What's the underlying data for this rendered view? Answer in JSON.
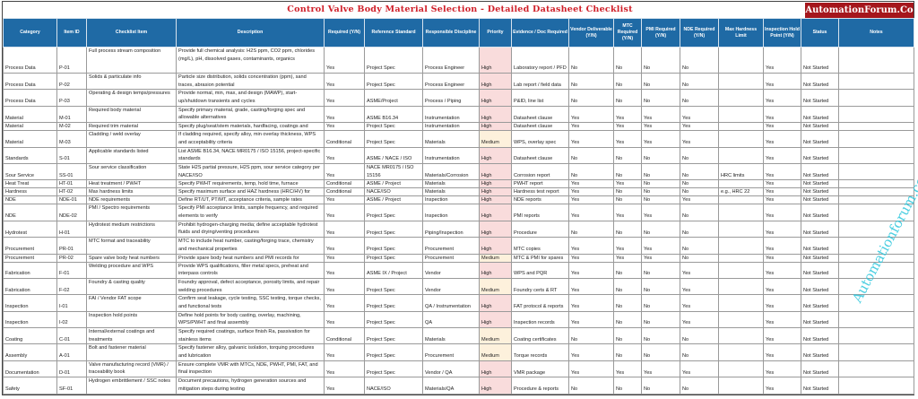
{
  "title": "Control Valve Body Material Selection - Detailed Datasheet Checklist",
  "logo_text": "AutomationForum.Co",
  "watermark_text": "Automationforum.co",
  "colors": {
    "header_bg": "#1f6aa5",
    "title": "#d0202a",
    "logo_bg": "#a5161c",
    "priority_high": "#f9dcdc",
    "priority_medium": "#fdf1dc"
  },
  "columns": [
    "Category",
    "Item ID",
    "Checklist Item",
    "Description",
    "Required (Y/N)",
    "Reference Standard",
    "Responsible Discipline",
    "Priority",
    "Evidence / Doc Required",
    "Vendor Deliverable (Y/N)",
    "MTC Required (Y/N)",
    "PMI Required (Y/N)",
    "NDE Required (Y/N)",
    "Max Hardness Limit",
    "Inspection Hold Point (Y/N)",
    "Status",
    "Notes"
  ],
  "rows": [
    [
      "Process Data",
      "P-01",
      "Full process stream composition",
      "Provide full chemical analysis: H2S ppm, CO2 ppm, chlorides (mg/L), pH, dissolved gases, contaminants, organics",
      "Yes",
      "Project Spec",
      "Process Engineer",
      "High",
      "Laboratory report / PFD",
      "No",
      "No",
      "No",
      "No",
      "",
      "Yes",
      "Not Started",
      ""
    ],
    [
      "Process Data",
      "P-02",
      "Solids & particulate info",
      "Particle size distribution, solids concentration (ppm), sand traces, abrasion potential",
      "Yes",
      "Project Spec",
      "Process Engineer",
      "High",
      "Lab report / field data",
      "No",
      "No",
      "No",
      "No",
      "",
      "Yes",
      "Not Started",
      ""
    ],
    [
      "Process Data",
      "P-03",
      "Operating & design temps/pressures",
      "Provide normal, min, max, and design (MAWP), start-up/shutdown transients and cycles",
      "Yes",
      "ASME/Project",
      "Process / Piping",
      "High",
      "P&ID, line list",
      "No",
      "No",
      "No",
      "No",
      "",
      "Yes",
      "Not Started",
      ""
    ],
    [
      "Material",
      "M-01",
      "Required body material",
      "Specify primary material, grade, casting/forging spec and allowable alternatives",
      "Yes",
      "ASME B16.34",
      "Instrumentation",
      "High",
      "Datasheet clause",
      "Yes",
      "Yes",
      "Yes",
      "Yes",
      "",
      "Yes",
      "Not Started",
      ""
    ],
    [
      "Material",
      "M-02",
      "Required trim material",
      "Specify plug/seat/stem materials, hardfacing, coatings and",
      "Yes",
      "Project Spec",
      "Instrumentation",
      "High",
      "Datasheet clause",
      "Yes",
      "Yes",
      "Yes",
      "Yes",
      "",
      "Yes",
      "Not Started",
      ""
    ],
    [
      "Material",
      "M-03",
      "Cladding / weld overlay",
      "If cladding required, specify alloy, min overlay thickness, WPS and acceptability criteria",
      "Conditional",
      "Project Spec",
      "Materials",
      "Medium",
      "WPS, overlay spec",
      "Yes",
      "Yes",
      "Yes",
      "Yes",
      "",
      "Yes",
      "Not Started",
      ""
    ],
    [
      "Standards",
      "S-01",
      "Applicable standards listed",
      "List ASME B16.34, NACE MR0175 / ISO 15156, project-specific standards",
      "Yes",
      "ASME / NACE / ISO",
      "Instrumentation",
      "High",
      "Datasheet clause",
      "No",
      "No",
      "No",
      "No",
      "",
      "Yes",
      "Not Started",
      ""
    ],
    [
      "Sour Service",
      "SS-01",
      "Sour service classification",
      "State H2S partial pressure, H2S ppm, sour service category per NACE/ISO",
      "Yes",
      "NACE MR0175 / ISO 15156",
      "Materials/Corrosion",
      "High",
      "Corrosion report",
      "No",
      "No",
      "No",
      "No",
      "HRC limits",
      "Yes",
      "Not Started",
      ""
    ],
    [
      "Heat Treat",
      "HT-01",
      "Heat treatment / PWHT",
      "Specify PWHT requirements, temp, hold time, furnace",
      "Conditional",
      "ASME / Project",
      "Materials",
      "High",
      "PWHT report",
      "Yes",
      "Yes",
      "No",
      "No",
      "",
      "Yes",
      "Not Started",
      ""
    ],
    [
      "Hardness",
      "HT-02",
      "Max hardness limits",
      "Specify maximum surface and HAZ hardness (HRC/HV) for",
      "Conditional",
      "NACE/ISO",
      "Materials",
      "High",
      "Hardness test report",
      "Yes",
      "No",
      "No",
      "No",
      "e.g., HRC 22",
      "Yes",
      "Not Started",
      ""
    ],
    [
      "NDE",
      "NDE-01",
      "NDE requirements",
      "Define RT/UT, PT/MT, acceptance criteria, sample rates",
      "Yes",
      "ASME / Project",
      "Inspection",
      "High",
      "NDE reports",
      "Yes",
      "No",
      "No",
      "Yes",
      "",
      "Yes",
      "Not Started",
      ""
    ],
    [
      "NDE",
      "NDE-02",
      "PMI / Spectro requirements",
      "Specify PMI acceptance limits, sample frequency, and required elements to verify",
      "Yes",
      "Project Spec",
      "Inspection",
      "High",
      "PMI reports",
      "Yes",
      "Yes",
      "Yes",
      "No",
      "",
      "Yes",
      "Not Started",
      ""
    ],
    [
      "Hydrotest",
      "H-01",
      "Hydrotest medium restrictions",
      "Prohibit hydrogen-charging media; define acceptable hydrotest fluids and drying/venting procedures",
      "Yes",
      "Project Spec",
      "Piping/Inspection",
      "High",
      "Procedure",
      "No",
      "No",
      "No",
      "No",
      "",
      "Yes",
      "Not Started",
      ""
    ],
    [
      "Procurement",
      "PR-01",
      "MTC format and traceability",
      "MTC to include heat number, casting/forging trace, chemistry and mechanical properties",
      "Yes",
      "Project Spec",
      "Procurement",
      "High",
      "MTC copies",
      "Yes",
      "Yes",
      "Yes",
      "No",
      "",
      "Yes",
      "Not Started",
      ""
    ],
    [
      "Procurement",
      "PR-02",
      "Spare valve body heat numbers",
      "Provide spare body heat numbers and PMI records for",
      "Yes",
      "Project Spec",
      "Procurement",
      "Medium",
      "MTC & PMI for spares",
      "Yes",
      "Yes",
      "Yes",
      "No",
      "",
      "Yes",
      "Not Started",
      ""
    ],
    [
      "Fabrication",
      "F-01",
      "Welding procedure and WPS",
      "Provide WPS qualifications, filler metal specs, preheat and interpass controls",
      "Yes",
      "ASME IX / Project",
      "Vendor",
      "High",
      "WPS and PQR",
      "Yes",
      "No",
      "No",
      "Yes",
      "",
      "Yes",
      "Not Started",
      ""
    ],
    [
      "Fabrication",
      "F-02",
      "Foundry & casting quality",
      "Foundry approval, defect acceptance, porosity limits, and repair welding procedures",
      "Yes",
      "Project Spec",
      "Vendor",
      "Medium",
      "Foundry certs & RT",
      "Yes",
      "No",
      "No",
      "Yes",
      "",
      "Yes",
      "Not Started",
      ""
    ],
    [
      "Inspection",
      "I-01",
      "FAI / Vendor FAT scope",
      "Confirm seat leakage, cycle testing, SSC testing, torque checks, and functional tests",
      "Yes",
      "Project Spec",
      "QA / Instrumentation",
      "High",
      "FAT protocol & reports",
      "Yes",
      "No",
      "No",
      "Yes",
      "",
      "Yes",
      "Not Started",
      ""
    ],
    [
      "Inspection",
      "I-02",
      "Inspection hold points",
      "Define hold points for body casting, overlay, machining, WPS/PWHT and final assembly",
      "Yes",
      "Project Spec",
      "QA",
      "High",
      "Inspection records",
      "Yes",
      "No",
      "No",
      "Yes",
      "",
      "Yes",
      "Not Started",
      ""
    ],
    [
      "Coating",
      "C-01",
      "Internal/external coatings and treatments",
      "Specify required coatings, surface finish Ra, passivation for stainless items",
      "Conditional",
      "Project Spec",
      "Materials",
      "Medium",
      "Coating certificates",
      "No",
      "No",
      "No",
      "No",
      "",
      "Yes",
      "Not Started",
      ""
    ],
    [
      "Assembly",
      "A-01",
      "Bolt and fastener material",
      "Specify fastener alloy, galvanic isolation, torquing procedures and lubrication",
      "Yes",
      "Project Spec",
      "Procurement",
      "Medium",
      "Torque records",
      "Yes",
      "No",
      "No",
      "No",
      "",
      "Yes",
      "Not Started",
      ""
    ],
    [
      "Documentation",
      "D-01",
      "Valve manufacturing record (VMR) / traceability book",
      "Ensure complete VMR with MTCs, NDE, PWHT, PMI, FAT, and final inspection",
      "Yes",
      "Project Spec",
      "Vendor / QA",
      "High",
      "VMR package",
      "Yes",
      "Yes",
      "Yes",
      "Yes",
      "",
      "Yes",
      "Not Started",
      ""
    ],
    [
      "Safety",
      "SF-01",
      "Hydrogen embrittlement / SSC notes",
      "Document precautions, hydrogen generation sources and mitigation steps during testing",
      "Yes",
      "NACE/ISO",
      "Materials/QA",
      "High",
      "Procedure & reports",
      "No",
      "No",
      "No",
      "No",
      "",
      "Yes",
      "Not Started",
      ""
    ]
  ]
}
